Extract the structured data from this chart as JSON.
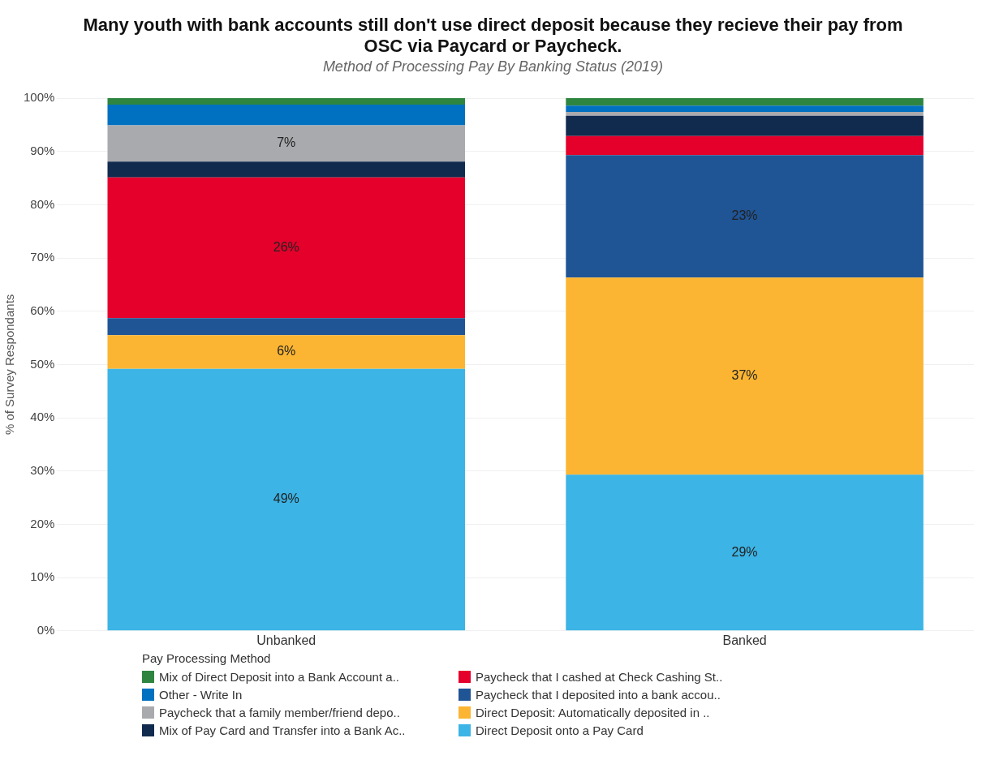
{
  "chart_data": {
    "type": "bar",
    "stacked": true,
    "title": "Many youth with bank accounts still don't use direct deposit because they recieve their pay from OSC via Paycard or Paycheck.",
    "subtitle": "Method of Processing Pay By Banking Status (2019)",
    "ylabel": "% of Survey Respondants",
    "legend_title": "Pay Processing Method",
    "categories": [
      "Unbanked",
      "Banked"
    ],
    "series": [
      {
        "name": "Direct Deposit onto a Pay Card",
        "color": "#3cb4e5",
        "values": [
          49.2,
          29.3
        ],
        "value_labels": [
          "49%",
          "29%"
        ]
      },
      {
        "name": "Direct Deposit: Automatically deposited in ..",
        "color": "#fbb532",
        "values": [
          6.3,
          37.0
        ],
        "value_labels": [
          "6%",
          "37%"
        ]
      },
      {
        "name": "Paycheck that I deposited into a bank accou..",
        "color": "#1f5495",
        "values": [
          3.2,
          23.0
        ],
        "value_labels": [
          null,
          "23%"
        ]
      },
      {
        "name": "Paycheck that I cashed at Check Cashing St..",
        "color": "#e4002b",
        "values": [
          26.4,
          3.6
        ],
        "value_labels": [
          "26%",
          null
        ]
      },
      {
        "name": "Mix of Pay Card and Transfer into a Bank Ac..",
        "color": "#112b4f",
        "values": [
          3.0,
          3.8
        ]
      },
      {
        "name": "Paycheck that a family member/friend depo..",
        "color": "#a9aaae",
        "values": [
          6.8,
          0.7
        ],
        "value_labels": [
          "7%",
          null
        ]
      },
      {
        "name": "Other - Write In",
        "color": "#0070c0",
        "values": [
          3.9,
          1.2
        ]
      },
      {
        "name": "Mix of Direct Deposit into a Bank Account a..",
        "color": "#2e8540",
        "values": [
          1.2,
          1.4
        ]
      }
    ],
    "ylim": [
      0,
      100
    ],
    "yticks": [
      {
        "value": 0,
        "label": "0%"
      },
      {
        "value": 10,
        "label": "10%"
      },
      {
        "value": 20,
        "label": "20%"
      },
      {
        "value": 30,
        "label": "30%"
      },
      {
        "value": 40,
        "label": "40%"
      },
      {
        "value": 50,
        "label": "50%"
      },
      {
        "value": 60,
        "label": "60%"
      },
      {
        "value": 70,
        "label": "70%"
      },
      {
        "value": 80,
        "label": "80%"
      },
      {
        "value": 90,
        "label": "90%"
      },
      {
        "value": 100,
        "label": "100%"
      }
    ],
    "grid": "y",
    "legend": "bottom"
  }
}
